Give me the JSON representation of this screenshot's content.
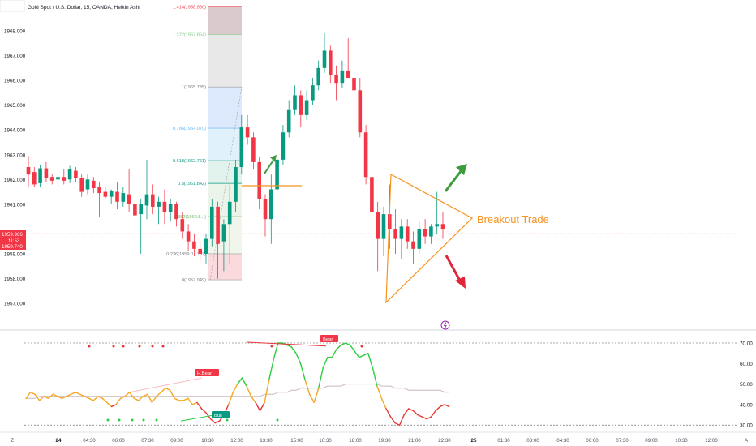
{
  "header": {
    "symbol_line": "Gold Spot / U.S. Dollar, 15, OANDA, Heikin Ashi"
  },
  "annotation": {
    "breakout_label": "Breakout Trade"
  },
  "colors": {
    "bull": "#089981",
    "bear": "#f23645",
    "triangle": "#f7931e",
    "arrow_up": "#3d9c3d",
    "arrow_down": "#e0263a",
    "rsi_high": "#2ecc40",
    "rsi_low": "#e53935",
    "rsi_mid": "#f5a623",
    "rsi_ma": "#c9b8b8"
  },
  "chart_data": [
    {
      "type": "candlestick",
      "style": "Heikin Ashi",
      "y_axis": {
        "ticks": [
          "1968.000",
          "1967.000",
          "1966.000",
          "1965.000",
          "1964.000",
          "1963.000",
          "1962.000",
          "1961.000",
          "1959.000",
          "1958.000",
          "1957.000"
        ],
        "range": [
          1956.6,
          1969.2
        ]
      },
      "price_badge": {
        "price": "1959.966",
        "time_left": "11:53",
        "low": "1959.740"
      },
      "fibonacci": {
        "levels": [
          {
            "ratio": 0,
            "price": 1957.949,
            "label": "0(1957.949)"
          },
          {
            "ratio": 0.236,
            "price": 1959.0,
            "label": "0.236(1959.0...787)"
          },
          {
            "ratio": 0.382,
            "price": 1960.5,
            "label": "0.382(1960.5...)"
          },
          {
            "ratio": 0.5,
            "price": 1961.842,
            "label": "0.5(1961.842)"
          },
          {
            "ratio": 0.618,
            "price": 1962.761,
            "label": "0.618(1962.761)"
          },
          {
            "ratio": 0.786,
            "price": 1964.07,
            "label": "0.786(1964.070)"
          },
          {
            "ratio": 1,
            "price": 1965.735,
            "label": "1(1965.735)"
          },
          {
            "ratio": 1.272,
            "price": 1967.854,
            "label": "1.272(1967.854)"
          },
          {
            "ratio": 1.414,
            "price": 1968.96,
            "label": "1.414(1968.960)"
          }
        ]
      },
      "candles": [
        [
          1962.5,
          1962.95,
          1961.7,
          1962.2
        ],
        [
          1962.3,
          1962.5,
          1961.7,
          1961.8
        ],
        [
          1961.85,
          1962.6,
          1961.7,
          1962.45
        ],
        [
          1962.45,
          1962.7,
          1961.9,
          1962.05
        ],
        [
          1962.1,
          1962.2,
          1961.8,
          1961.95
        ],
        [
          1962.0,
          1962.3,
          1961.6,
          1962.1
        ],
        [
          1962.1,
          1962.4,
          1961.8,
          1961.95
        ],
        [
          1962.0,
          1962.55,
          1961.85,
          1962.4
        ],
        [
          1962.35,
          1962.5,
          1961.9,
          1962.05
        ],
        [
          1962.05,
          1962.2,
          1961.3,
          1961.5
        ],
        [
          1961.6,
          1962.2,
          1961.4,
          1962.0
        ],
        [
          1961.95,
          1962.1,
          1961.45,
          1961.65
        ],
        [
          1961.7,
          1961.9,
          1960.5,
          1961.45
        ],
        [
          1961.5,
          1961.7,
          1961.2,
          1961.3
        ],
        [
          1961.3,
          1961.6,
          1961.0,
          1961.55
        ],
        [
          1961.5,
          1961.9,
          1960.8,
          1961.1
        ],
        [
          1961.1,
          1961.7,
          1960.9,
          1961.45
        ],
        [
          1961.4,
          1962.4,
          1960.7,
          1961.0
        ],
        [
          1961.0,
          1961.6,
          1959.1,
          1960.55
        ],
        [
          1960.6,
          1961.2,
          1959.0,
          1961.0
        ],
        [
          1960.95,
          1962.8,
          1960.4,
          1961.4
        ],
        [
          1961.4,
          1961.8,
          1960.6,
          1960.9
        ],
        [
          1960.9,
          1961.3,
          1960.2,
          1961.1
        ],
        [
          1961.1,
          1961.6,
          1960.2,
          1960.7
        ],
        [
          1960.7,
          1961.2,
          1960.3,
          1961.0
        ],
        [
          1961.0,
          1961.1,
          1960.1,
          1960.4
        ],
        [
          1960.4,
          1960.7,
          1959.6,
          1959.9
        ],
        [
          1959.9,
          1960.2,
          1959.1,
          1959.5
        ],
        [
          1959.5,
          1959.8,
          1958.9,
          1959.2
        ],
        [
          1959.2,
          1959.5,
          1958.7,
          1959.0
        ],
        [
          1959.0,
          1959.8,
          1958.6,
          1959.6
        ],
        [
          1959.6,
          1961.2,
          1959.3,
          1960.9
        ],
        [
          1960.9,
          1961.1,
          1958.0,
          1959.4
        ],
        [
          1959.5,
          1960.4,
          1958.3,
          1960.2
        ],
        [
          1960.2,
          1961.8,
          1958.6,
          1961.1
        ],
        [
          1961.1,
          1962.8,
          1960.7,
          1962.5
        ],
        [
          1962.5,
          1964.6,
          1962.2,
          1964.1
        ],
        [
          1964.1,
          1964.6,
          1963.4,
          1963.7
        ],
        [
          1963.7,
          1963.9,
          1962.4,
          1962.7
        ],
        [
          1962.7,
          1962.9,
          1960.8,
          1961.2
        ],
        [
          1961.2,
          1961.4,
          1959.7,
          1960.4
        ],
        [
          1960.4,
          1962.2,
          1959.4,
          1961.6
        ],
        [
          1961.6,
          1963.2,
          1961.4,
          1962.8
        ],
        [
          1962.8,
          1964.2,
          1962.6,
          1963.9
        ],
        [
          1963.9,
          1965.2,
          1963.7,
          1964.8
        ],
        [
          1964.8,
          1965.8,
          1964.6,
          1965.4
        ],
        [
          1965.4,
          1965.6,
          1964.1,
          1964.6
        ],
        [
          1964.6,
          1965.6,
          1964.4,
          1965.2
        ],
        [
          1965.2,
          1966.1,
          1965.0,
          1965.8
        ],
        [
          1965.8,
          1966.8,
          1965.6,
          1966.5
        ],
        [
          1966.5,
          1967.9,
          1966.3,
          1967.2
        ],
        [
          1967.2,
          1967.4,
          1965.9,
          1966.2
        ],
        [
          1966.2,
          1966.6,
          1965.2,
          1965.9
        ],
        [
          1965.9,
          1966.8,
          1965.7,
          1966.4
        ],
        [
          1966.4,
          1967.7,
          1966.2,
          1966.1
        ],
        [
          1966.1,
          1966.6,
          1964.9,
          1965.6
        ],
        [
          1965.6,
          1966.1,
          1963.7,
          1963.9
        ],
        [
          1963.9,
          1964.2,
          1961.8,
          1962.1
        ],
        [
          1962.1,
          1962.4,
          1959.6,
          1960.7
        ],
        [
          1960.7,
          1961.1,
          1958.3,
          1959.6
        ],
        [
          1959.6,
          1960.9,
          1958.9,
          1960.6
        ],
        [
          1960.6,
          1961.8,
          1959.2,
          1960.0
        ],
        [
          1960.0,
          1960.8,
          1959.0,
          1959.6
        ],
        [
          1959.6,
          1960.4,
          1958.8,
          1960.1
        ],
        [
          1960.1,
          1960.4,
          1959.2,
          1959.5
        ],
        [
          1959.5,
          1959.9,
          1958.6,
          1959.2
        ],
        [
          1959.2,
          1960.3,
          1959.0,
          1960.0
        ],
        [
          1960.0,
          1960.4,
          1959.4,
          1959.7
        ],
        [
          1959.7,
          1960.2,
          1959.4,
          1960.1
        ],
        [
          1960.1,
          1961.5,
          1959.8,
          1960.2
        ],
        [
          1960.2,
          1960.7,
          1959.6,
          1960.0
        ]
      ]
    },
    {
      "type": "line",
      "name_visible": false,
      "y_axis": {
        "ticks": [
          "70.00",
          "60.00",
          "50.00",
          "40.00",
          "30.00"
        ],
        "range": [
          28,
          74
        ]
      },
      "levels": [
        70,
        30
      ],
      "rsi": [
        43,
        46,
        45,
        42,
        44,
        43,
        45,
        44,
        43,
        44,
        45,
        46,
        45,
        44,
        43,
        42,
        44,
        43,
        41,
        39,
        40,
        43,
        44,
        46,
        43,
        42,
        44,
        45,
        41,
        44,
        46,
        48,
        47,
        43,
        42,
        42,
        43,
        40,
        41,
        38,
        36,
        33,
        31,
        32,
        35,
        40,
        46,
        50,
        53,
        49,
        44,
        41,
        37,
        41,
        52,
        62,
        70,
        70,
        69,
        68,
        65,
        60,
        52,
        45,
        41,
        48,
        58,
        63,
        63,
        67,
        69,
        70,
        69,
        66,
        63,
        64,
        65,
        58,
        49,
        43,
        38,
        34,
        31,
        30,
        35,
        38,
        37,
        35,
        34,
        33,
        34,
        37,
        39,
        40,
        39
      ],
      "rsi_ma": [
        43,
        43,
        43,
        44,
        44,
        44,
        44,
        44,
        44,
        44,
        44,
        44,
        44,
        44,
        44,
        44,
        44,
        44,
        44,
        44,
        44,
        44,
        44,
        44,
        44,
        44,
        44,
        44,
        44,
        44,
        44,
        44,
        44,
        44,
        44,
        44,
        44,
        44,
        44,
        44,
        44,
        44,
        44,
        44,
        44,
        44,
        44,
        44,
        44,
        44,
        44,
        44,
        44,
        45,
        45,
        45,
        46,
        46,
        46,
        47,
        47,
        48,
        48,
        48,
        48,
        48,
        48,
        49,
        49,
        49,
        49,
        50,
        50,
        50,
        50,
        50,
        50,
        50,
        50,
        49,
        49,
        49,
        48,
        48,
        48,
        47,
        47,
        47,
        47,
        47,
        47,
        47,
        47,
        46,
        46
      ],
      "labels": [
        {
          "text": "H.Bear",
          "kind": "bear",
          "at": 48
        },
        {
          "text": "Bear",
          "kind": "bear",
          "at": 71
        },
        {
          "text": "Bull",
          "kind": "bull",
          "at": 51
        }
      ]
    }
  ],
  "x_axis": {
    "ticks": [
      "Z",
      "24",
      "04:30",
      "06:00",
      "07:30",
      "09:00",
      "10:30",
      "12:00",
      "13:30",
      "15:00",
      "16:30",
      "18:00",
      "19:30",
      "21:00",
      "22:30",
      "25",
      "01:30",
      "03:00",
      "04:30",
      "06:00",
      "07:30",
      "09:00",
      "10:30",
      "12:00",
      "A"
    ],
    "bold": [
      "24",
      "25"
    ]
  }
}
